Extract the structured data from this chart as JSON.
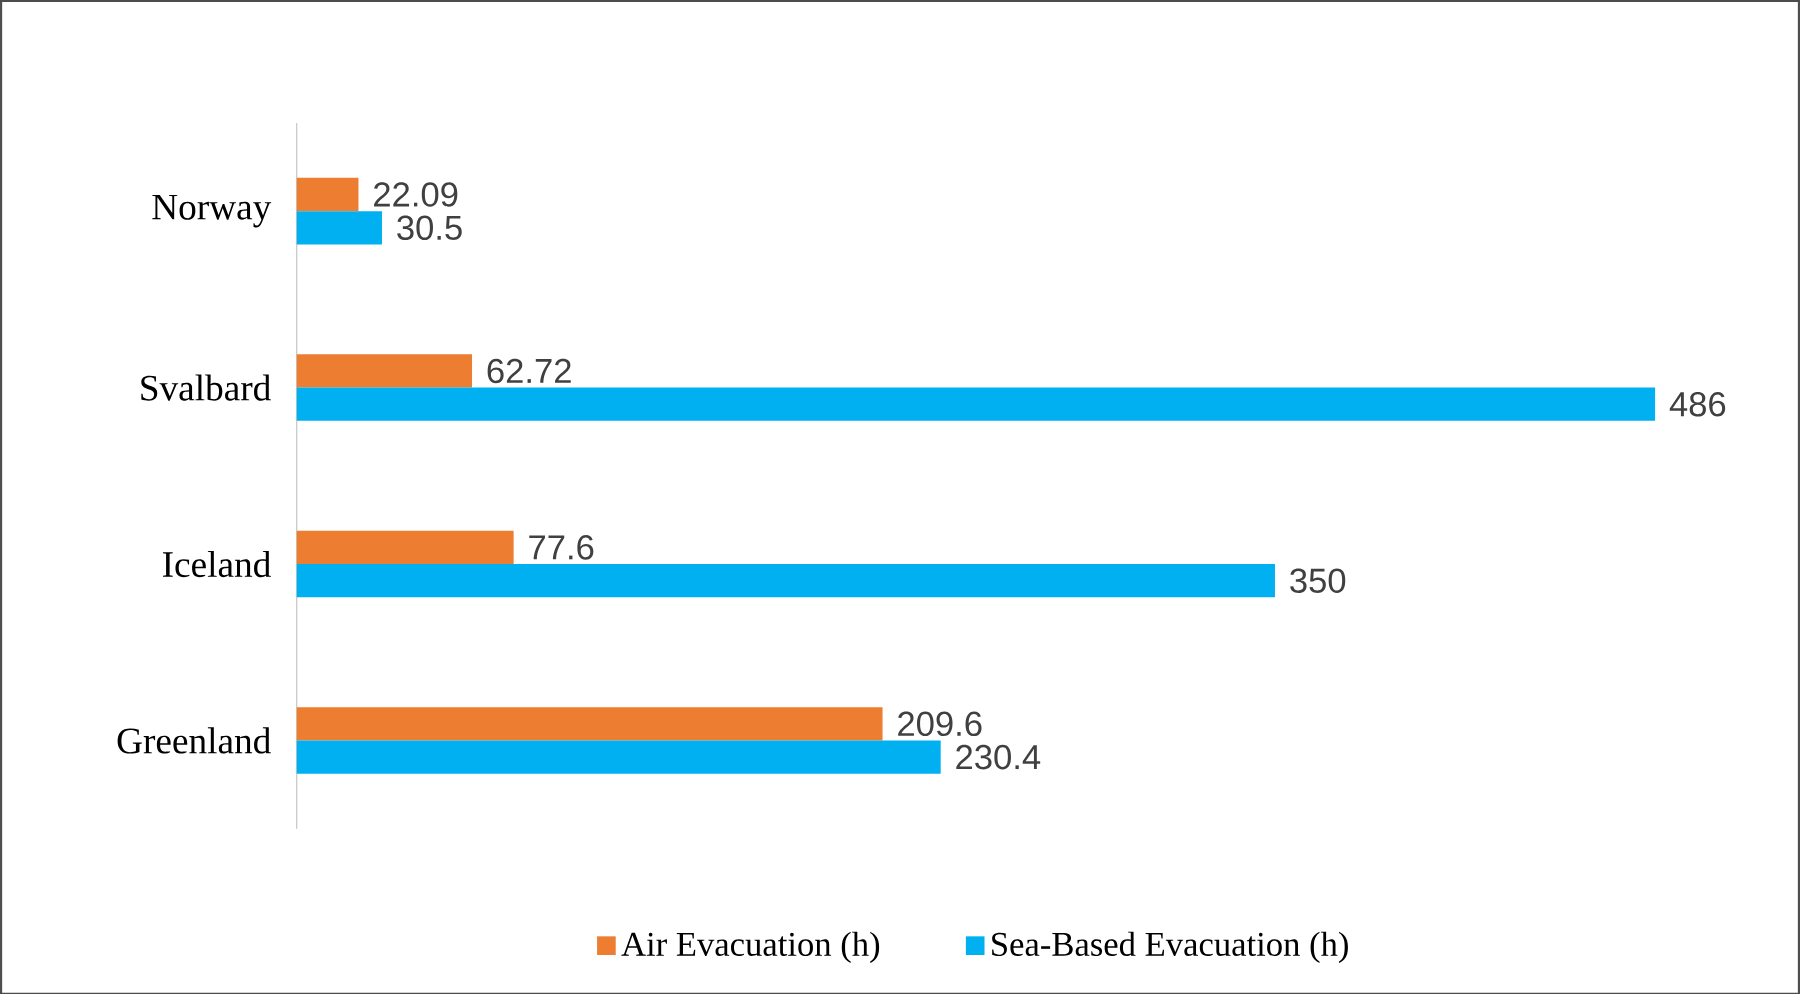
{
  "chart_data": {
    "type": "bar",
    "orientation": "horizontal",
    "categories": [
      "Norway",
      "Svalbard",
      "Iceland",
      "Greenland"
    ],
    "series": [
      {
        "name": "Air Evacuation (h)",
        "color": "#ed7d31",
        "values": [
          22.09,
          62.72,
          77.6,
          209.6
        ]
      },
      {
        "name": "Sea-Based Evacuation (h)",
        "color": "#00b0f0",
        "values": [
          30.5,
          486,
          350,
          230.4
        ]
      }
    ],
    "data_labels": true,
    "legend": "bottom",
    "grid": false
  }
}
